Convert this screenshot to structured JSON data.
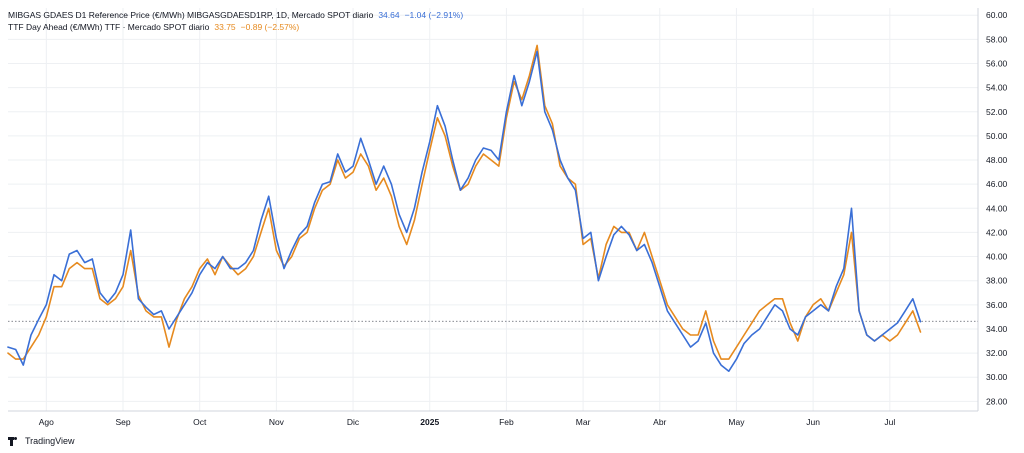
{
  "colors": {
    "mibgas": "#3a6fd6",
    "ttf": "#e68a1f",
    "down": "#ef5350",
    "grid": "#eef0f3",
    "axis_text": "#131722",
    "baseline": "#5d606b"
  },
  "legend": {
    "mibgas": {
      "label": "MIBGAS GDAES D1 Reference Price (€/MWh) MIBGASGDAESD1RP, 1D, Mercado SPOT diario",
      "value": "34.64",
      "change": "−1.04 (−2.91%)"
    },
    "ttf": {
      "label": "TTF Day Ahead (€/MWh) TTF · Mercado SPOT diario",
      "value": "33.75",
      "change": "−0.89 (−2.57%)"
    }
  },
  "footer": {
    "brand": "TradingView"
  },
  "chart_data": {
    "type": "line",
    "x_labels": [
      "Ago",
      "Sep",
      "Oct",
      "Nov",
      "Dic",
      "2025",
      "Feb",
      "Mar",
      "Abr",
      "May",
      "Jun",
      "Jul"
    ],
    "x_label_positions": [
      0.5,
      1.5,
      2.5,
      3.5,
      4.5,
      5.5,
      6.5,
      7.5,
      8.5,
      9.5,
      10.5,
      11.5
    ],
    "x_range": [
      0,
      12.65
    ],
    "y_ticks": [
      "28.00",
      "30.00",
      "32.00",
      "34.00",
      "36.00",
      "38.00",
      "40.00",
      "42.00",
      "44.00",
      "46.00",
      "48.00",
      "50.00",
      "52.00",
      "54.00",
      "56.00",
      "58.00",
      "60.00"
    ],
    "ylim": [
      27.2,
      60.6
    ],
    "reference_line": 34.64,
    "series": [
      {
        "name": "MIBGAS GDAES D1 Reference Price (€/MWh)",
        "color_key": "mibgas",
        "points": [
          [
            0.0,
            32.5
          ],
          [
            0.1,
            32.3
          ],
          [
            0.2,
            31.0
          ],
          [
            0.3,
            33.5
          ],
          [
            0.4,
            34.8
          ],
          [
            0.5,
            36.0
          ],
          [
            0.6,
            38.5
          ],
          [
            0.7,
            38.0
          ],
          [
            0.8,
            40.2
          ],
          [
            0.9,
            40.5
          ],
          [
            1.0,
            39.5
          ],
          [
            1.1,
            39.8
          ],
          [
            1.2,
            37.0
          ],
          [
            1.3,
            36.2
          ],
          [
            1.4,
            37.0
          ],
          [
            1.5,
            38.5
          ],
          [
            1.6,
            42.2
          ],
          [
            1.7,
            36.5
          ],
          [
            1.8,
            35.8
          ],
          [
            1.9,
            35.2
          ],
          [
            2.0,
            35.5
          ],
          [
            2.1,
            34.0
          ],
          [
            2.2,
            35.0
          ],
          [
            2.3,
            36.0
          ],
          [
            2.4,
            37.0
          ],
          [
            2.5,
            38.5
          ],
          [
            2.6,
            39.5
          ],
          [
            2.7,
            39.0
          ],
          [
            2.8,
            40.0
          ],
          [
            2.9,
            39.0
          ],
          [
            3.0,
            39.0
          ],
          [
            3.1,
            39.5
          ],
          [
            3.2,
            40.5
          ],
          [
            3.3,
            43.0
          ],
          [
            3.4,
            45.0
          ],
          [
            3.5,
            41.5
          ],
          [
            3.6,
            39.0
          ],
          [
            3.7,
            40.5
          ],
          [
            3.8,
            41.8
          ],
          [
            3.9,
            42.5
          ],
          [
            4.0,
            44.5
          ],
          [
            4.1,
            46.0
          ],
          [
            4.2,
            46.2
          ],
          [
            4.3,
            48.5
          ],
          [
            4.4,
            47.0
          ],
          [
            4.5,
            47.5
          ],
          [
            4.6,
            49.8
          ],
          [
            4.7,
            48.0
          ],
          [
            4.8,
            46.0
          ],
          [
            4.9,
            47.5
          ],
          [
            5.0,
            46.0
          ],
          [
            5.1,
            43.5
          ],
          [
            5.2,
            42.0
          ],
          [
            5.3,
            44.0
          ],
          [
            5.4,
            47.0
          ],
          [
            5.5,
            49.5
          ],
          [
            5.6,
            52.5
          ],
          [
            5.7,
            50.8
          ],
          [
            5.8,
            48.0
          ],
          [
            5.9,
            45.5
          ],
          [
            6.0,
            46.5
          ],
          [
            6.1,
            48.0
          ],
          [
            6.2,
            49.0
          ],
          [
            6.3,
            48.8
          ],
          [
            6.4,
            48.0
          ],
          [
            6.5,
            52.0
          ],
          [
            6.6,
            55.0
          ],
          [
            6.7,
            52.5
          ],
          [
            6.8,
            54.5
          ],
          [
            6.9,
            57.0
          ],
          [
            7.0,
            52.0
          ],
          [
            7.1,
            50.5
          ],
          [
            7.2,
            48.0
          ],
          [
            7.3,
            46.5
          ],
          [
            7.4,
            45.5
          ],
          [
            7.5,
            41.5
          ],
          [
            7.6,
            42.0
          ],
          [
            7.7,
            38.0
          ],
          [
            7.8,
            40.0
          ],
          [
            7.9,
            41.8
          ],
          [
            8.0,
            42.5
          ],
          [
            8.1,
            41.8
          ],
          [
            8.2,
            40.5
          ],
          [
            8.3,
            41.0
          ],
          [
            8.4,
            39.5
          ],
          [
            8.5,
            37.5
          ],
          [
            8.6,
            35.5
          ],
          [
            8.7,
            34.5
          ],
          [
            8.8,
            33.5
          ],
          [
            8.9,
            32.5
          ],
          [
            9.0,
            33.0
          ],
          [
            9.1,
            34.5
          ],
          [
            9.2,
            32.0
          ],
          [
            9.3,
            31.0
          ],
          [
            9.4,
            30.5
          ],
          [
            9.5,
            31.5
          ],
          [
            9.6,
            32.8
          ],
          [
            9.7,
            33.5
          ],
          [
            9.8,
            34.0
          ],
          [
            9.9,
            35.0
          ],
          [
            10.0,
            36.0
          ],
          [
            10.1,
            35.5
          ],
          [
            10.2,
            34.0
          ],
          [
            10.3,
            33.5
          ],
          [
            10.4,
            35.0
          ],
          [
            10.5,
            35.5
          ],
          [
            10.6,
            36.0
          ],
          [
            10.7,
            35.5
          ],
          [
            10.8,
            37.5
          ],
          [
            10.9,
            39.0
          ],
          [
            11.0,
            44.0
          ],
          [
            11.1,
            35.5
          ],
          [
            11.2,
            33.5
          ],
          [
            11.3,
            33.0
          ],
          [
            11.4,
            33.5
          ],
          [
            11.5,
            34.0
          ],
          [
            11.6,
            34.5
          ],
          [
            11.7,
            35.5
          ],
          [
            11.8,
            36.5
          ],
          [
            11.9,
            34.6
          ]
        ]
      },
      {
        "name": "TTF Day Ahead (€/MWh)",
        "color_key": "ttf",
        "points": [
          [
            0.0,
            32.0
          ],
          [
            0.1,
            31.5
          ],
          [
            0.2,
            31.5
          ],
          [
            0.3,
            32.5
          ],
          [
            0.4,
            33.5
          ],
          [
            0.5,
            35.0
          ],
          [
            0.6,
            37.5
          ],
          [
            0.7,
            37.5
          ],
          [
            0.8,
            39.0
          ],
          [
            0.9,
            39.5
          ],
          [
            1.0,
            39.0
          ],
          [
            1.1,
            39.0
          ],
          [
            1.2,
            36.5
          ],
          [
            1.3,
            36.0
          ],
          [
            1.4,
            36.5
          ],
          [
            1.5,
            37.5
          ],
          [
            1.6,
            40.5
          ],
          [
            1.7,
            36.8
          ],
          [
            1.8,
            35.5
          ],
          [
            1.9,
            35.0
          ],
          [
            2.0,
            35.0
          ],
          [
            2.1,
            32.5
          ],
          [
            2.2,
            34.8
          ],
          [
            2.3,
            36.5
          ],
          [
            2.4,
            37.5
          ],
          [
            2.5,
            39.0
          ],
          [
            2.6,
            39.8
          ],
          [
            2.7,
            38.5
          ],
          [
            2.8,
            40.0
          ],
          [
            2.9,
            39.2
          ],
          [
            3.0,
            38.5
          ],
          [
            3.1,
            39.0
          ],
          [
            3.2,
            40.0
          ],
          [
            3.3,
            42.0
          ],
          [
            3.4,
            44.0
          ],
          [
            3.5,
            40.5
          ],
          [
            3.6,
            39.2
          ],
          [
            3.7,
            40.0
          ],
          [
            3.8,
            41.5
          ],
          [
            3.9,
            42.0
          ],
          [
            4.0,
            44.0
          ],
          [
            4.1,
            45.5
          ],
          [
            4.2,
            46.0
          ],
          [
            4.3,
            48.0
          ],
          [
            4.4,
            46.5
          ],
          [
            4.5,
            47.0
          ],
          [
            4.6,
            48.5
          ],
          [
            4.7,
            47.5
          ],
          [
            4.8,
            45.5
          ],
          [
            4.9,
            46.5
          ],
          [
            5.0,
            45.0
          ],
          [
            5.1,
            42.5
          ],
          [
            5.2,
            41.0
          ],
          [
            5.3,
            43.0
          ],
          [
            5.4,
            46.0
          ],
          [
            5.5,
            48.8
          ],
          [
            5.6,
            51.5
          ],
          [
            5.7,
            50.0
          ],
          [
            5.8,
            47.5
          ],
          [
            5.9,
            45.5
          ],
          [
            6.0,
            46.0
          ],
          [
            6.1,
            47.5
          ],
          [
            6.2,
            48.5
          ],
          [
            6.3,
            48.0
          ],
          [
            6.4,
            47.5
          ],
          [
            6.5,
            51.5
          ],
          [
            6.6,
            54.5
          ],
          [
            6.7,
            53.0
          ],
          [
            6.8,
            55.0
          ],
          [
            6.9,
            57.5
          ],
          [
            7.0,
            52.5
          ],
          [
            7.1,
            51.0
          ],
          [
            7.2,
            47.5
          ],
          [
            7.3,
            46.5
          ],
          [
            7.4,
            46.0
          ],
          [
            7.5,
            41.0
          ],
          [
            7.6,
            41.5
          ],
          [
            7.7,
            38.2
          ],
          [
            7.8,
            41.0
          ],
          [
            7.9,
            42.5
          ],
          [
            8.0,
            42.0
          ],
          [
            8.1,
            42.0
          ],
          [
            8.2,
            40.5
          ],
          [
            8.3,
            42.0
          ],
          [
            8.4,
            40.0
          ],
          [
            8.5,
            38.0
          ],
          [
            8.6,
            36.0
          ],
          [
            8.7,
            35.0
          ],
          [
            8.8,
            34.0
          ],
          [
            8.9,
            33.5
          ],
          [
            9.0,
            33.5
          ],
          [
            9.1,
            35.5
          ],
          [
            9.2,
            33.0
          ],
          [
            9.3,
            31.5
          ],
          [
            9.4,
            31.5
          ],
          [
            9.5,
            32.5
          ],
          [
            9.6,
            33.5
          ],
          [
            9.7,
            34.5
          ],
          [
            9.8,
            35.5
          ],
          [
            9.9,
            36.0
          ],
          [
            10.0,
            36.5
          ],
          [
            10.1,
            36.5
          ],
          [
            10.2,
            34.5
          ],
          [
            10.3,
            33.0
          ],
          [
            10.4,
            35.0
          ],
          [
            10.5,
            36.0
          ],
          [
            10.6,
            36.5
          ],
          [
            10.7,
            35.5
          ],
          [
            10.8,
            37.0
          ],
          [
            10.9,
            38.5
          ],
          [
            11.0,
            42.0
          ],
          [
            11.1,
            35.5
          ],
          [
            11.2,
            33.5
          ],
          [
            11.3,
            33.0
          ],
          [
            11.4,
            33.5
          ],
          [
            11.5,
            33.0
          ],
          [
            11.6,
            33.5
          ],
          [
            11.7,
            34.5
          ],
          [
            11.8,
            35.5
          ],
          [
            11.9,
            33.75
          ]
        ]
      }
    ]
  }
}
